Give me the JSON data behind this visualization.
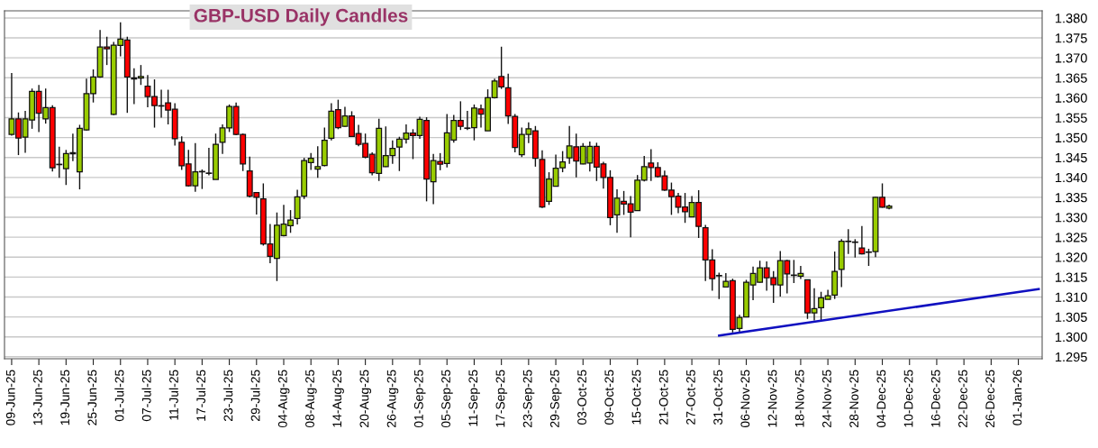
{
  "chart_data": {
    "type": "candlestick",
    "title": "GBP-USD Daily Candles",
    "categories": [
      "09-Jun-25",
      null,
      null,
      null,
      "13-Jun-25",
      null,
      null,
      null,
      "19-Jun-25",
      null,
      null,
      null,
      "25-Jun-25",
      null,
      null,
      null,
      "01-Jul-25",
      null,
      null,
      null,
      "07-Jul-25",
      null,
      null,
      null,
      "11-Jul-25",
      null,
      null,
      null,
      "17-Jul-25",
      null,
      null,
      null,
      "23-Jul-25",
      null,
      null,
      null,
      "29-Jul-25",
      null,
      null,
      null,
      "04-Aug-25",
      null,
      null,
      null,
      "08-Aug-25",
      null,
      null,
      null,
      "14-Aug-25",
      null,
      null,
      null,
      "20-Aug-25",
      null,
      null,
      null,
      "26-Aug-25",
      null,
      null,
      null,
      "01-Sep-25",
      null,
      null,
      null,
      "05-Sep-25",
      null,
      null,
      null,
      "11-Sep-25",
      null,
      null,
      null,
      "17-Sep-25",
      null,
      null,
      null,
      "23-Sep-25",
      null,
      null,
      null,
      "29-Sep-25",
      null,
      null,
      null,
      "03-Oct-25",
      null,
      null,
      null,
      "09-Oct-25",
      null,
      null,
      null,
      "15-Oct-25",
      null,
      null,
      null,
      "21-Oct-25",
      null,
      null,
      null,
      "27-Oct-25",
      null,
      null,
      null,
      "31-Oct-25",
      null,
      null,
      null,
      "06-Nov-25",
      null,
      null,
      null,
      "12-Nov-25",
      null,
      null,
      null,
      "18-Nov-25",
      null,
      null,
      null,
      "24-Nov-25",
      null,
      null,
      null,
      "28-Nov-25",
      null,
      null,
      null,
      "04-Dec-25",
      null,
      null,
      null,
      "10-Dec-25",
      null,
      null,
      null,
      "16-Dec-25",
      null,
      null,
      null,
      "22-Dec-25",
      null,
      null,
      null,
      "26-Dec-25",
      null,
      null,
      null,
      "01-Jan-26",
      null,
      null,
      null
    ],
    "ohlc": [
      [
        1.3508,
        1.3662,
        1.3505,
        1.3547
      ],
      [
        1.3547,
        1.3563,
        1.3456,
        1.3499
      ],
      [
        1.3501,
        1.3567,
        1.3462,
        1.3547
      ],
      [
        1.3544,
        1.3623,
        1.3522,
        1.3616
      ],
      [
        1.3616,
        1.3632,
        1.3514,
        1.3561
      ],
      [
        1.3547,
        1.3623,
        1.3535,
        1.3575
      ],
      [
        1.3575,
        1.3581,
        1.3415,
        1.3424
      ],
      [
        1.3433,
        1.3477,
        1.3399,
        1.3432
      ],
      [
        1.3422,
        1.3469,
        1.3381,
        1.346
      ],
      [
        1.3462,
        1.351,
        1.3441,
        1.3459
      ],
      [
        1.3414,
        1.3532,
        1.337,
        1.3523
      ],
      [
        1.3519,
        1.3648,
        1.3517,
        1.361
      ],
      [
        1.361,
        1.3671,
        1.3588,
        1.3652
      ],
      [
        1.3652,
        1.377,
        1.365,
        1.3727
      ],
      [
        1.3727,
        1.3753,
        1.3682,
        1.3723
      ],
      [
        1.3558,
        1.374,
        1.3556,
        1.3732
      ],
      [
        1.3731,
        1.3789,
        1.3704,
        1.3747
      ],
      [
        1.3745,
        1.3753,
        1.3562,
        1.3652
      ],
      [
        1.365,
        1.3674,
        1.3584,
        1.3647
      ],
      [
        1.3649,
        1.3682,
        1.3632,
        1.3653
      ],
      [
        1.3629,
        1.3657,
        1.3576,
        1.3603
      ],
      [
        1.3603,
        1.3646,
        1.3525,
        1.358
      ],
      [
        1.358,
        1.362,
        1.355,
        1.3579
      ],
      [
        1.3587,
        1.362,
        1.3533,
        1.3569
      ],
      [
        1.3571,
        1.3586,
        1.348,
        1.3497
      ],
      [
        1.3488,
        1.3503,
        1.3419,
        1.3429
      ],
      [
        1.3434,
        1.3469,
        1.3377,
        1.3379
      ],
      [
        1.3379,
        1.3486,
        1.3364,
        1.3414
      ],
      [
        1.3415,
        1.342,
        1.3371,
        1.3414
      ],
      [
        1.3411,
        1.3474,
        1.3405,
        1.341
      ],
      [
        1.3395,
        1.351,
        1.3395,
        1.3483
      ],
      [
        1.3488,
        1.3533,
        1.3459,
        1.3524
      ],
      [
        1.3524,
        1.3583,
        1.3514,
        1.3578
      ],
      [
        1.3578,
        1.3588,
        1.3506,
        1.3508
      ],
      [
        1.3508,
        1.351,
        1.3416,
        1.3434
      ],
      [
        1.3416,
        1.3452,
        1.335,
        1.3353
      ],
      [
        1.3362,
        1.3363,
        1.3307,
        1.335
      ],
      [
        1.3346,
        1.3385,
        1.3229,
        1.3233
      ],
      [
        1.3233,
        1.3283,
        1.3185,
        1.3202
      ],
      [
        1.3197,
        1.3312,
        1.314,
        1.328
      ],
      [
        1.3254,
        1.3331,
        1.3252,
        1.3283
      ],
      [
        1.3279,
        1.3318,
        1.3261,
        1.3293
      ],
      [
        1.3297,
        1.3369,
        1.3282,
        1.3351
      ],
      [
        1.3353,
        1.3449,
        1.3346,
        1.3442
      ],
      [
        1.3437,
        1.3461,
        1.3419,
        1.3448
      ],
      [
        1.3421,
        1.3478,
        1.3399,
        1.3427
      ],
      [
        1.343,
        1.3525,
        1.3428,
        1.3493
      ],
      [
        1.3498,
        1.3586,
        1.3493,
        1.3566
      ],
      [
        1.357,
        1.3595,
        1.3521,
        1.3525
      ],
      [
        1.3528,
        1.3577,
        1.3527,
        1.3554
      ],
      [
        1.3554,
        1.3566,
        1.3502,
        1.3503
      ],
      [
        1.351,
        1.3532,
        1.3478,
        1.3483
      ],
      [
        1.3485,
        1.351,
        1.3448,
        1.3451
      ],
      [
        1.3458,
        1.3463,
        1.3405,
        1.3412
      ],
      [
        1.341,
        1.3547,
        1.3391,
        1.3523
      ],
      [
        1.3427,
        1.3528,
        1.3426,
        1.3455
      ],
      [
        1.3455,
        1.3493,
        1.3434,
        1.3473
      ],
      [
        1.3476,
        1.3502,
        1.3416,
        1.3496
      ],
      [
        1.3496,
        1.3533,
        1.3485,
        1.3511
      ],
      [
        1.3511,
        1.3521,
        1.3446,
        1.3505
      ],
      [
        1.3505,
        1.3552,
        1.3497,
        1.3546
      ],
      [
        1.3543,
        1.3551,
        1.334,
        1.3396
      ],
      [
        1.3389,
        1.3459,
        1.3333,
        1.3442
      ],
      [
        1.344,
        1.3461,
        1.3418,
        1.3433
      ],
      [
        1.3435,
        1.3559,
        1.3425,
        1.3512
      ],
      [
        1.3494,
        1.3557,
        1.3487,
        1.3543
      ],
      [
        1.3543,
        1.3591,
        1.3519,
        1.3528
      ],
      [
        1.3524,
        1.3567,
        1.3519,
        1.3523
      ],
      [
        1.3525,
        1.3583,
        1.3493,
        1.3574
      ],
      [
        1.3572,
        1.3583,
        1.3525,
        1.3559
      ],
      [
        1.3517,
        1.3621,
        1.3517,
        1.36
      ],
      [
        1.36,
        1.3648,
        1.3598,
        1.3642
      ],
      [
        1.3653,
        1.3728,
        1.3622,
        1.3627
      ],
      [
        1.3625,
        1.366,
        1.3534,
        1.3554
      ],
      [
        1.3553,
        1.3559,
        1.3463,
        1.3475
      ],
      [
        1.3457,
        1.3525,
        1.3451,
        1.3508
      ],
      [
        1.3508,
        1.3538,
        1.3486,
        1.3522
      ],
      [
        1.3517,
        1.3529,
        1.3427,
        1.3448
      ],
      [
        1.3445,
        1.3468,
        1.3323,
        1.3326
      ],
      [
        1.334,
        1.3413,
        1.3331,
        1.3396
      ],
      [
        1.3378,
        1.3457,
        1.3377,
        1.3423
      ],
      [
        1.3424,
        1.3466,
        1.3413,
        1.3439
      ],
      [
        1.3449,
        1.3529,
        1.3434,
        1.3479
      ],
      [
        1.3477,
        1.351,
        1.34,
        1.3441
      ],
      [
        1.3434,
        1.3486,
        1.3433,
        1.3478
      ],
      [
        1.3436,
        1.349,
        1.3415,
        1.3478
      ],
      [
        1.3478,
        1.3487,
        1.3391,
        1.3426
      ],
      [
        1.3434,
        1.3439,
        1.3372,
        1.34
      ],
      [
        1.34,
        1.3418,
        1.328,
        1.3299
      ],
      [
        1.3306,
        1.337,
        1.3261,
        1.3348
      ],
      [
        1.334,
        1.3366,
        1.3306,
        1.3333
      ],
      [
        1.3334,
        1.3353,
        1.325,
        1.3313
      ],
      [
        1.3317,
        1.3406,
        1.3316,
        1.3393
      ],
      [
        1.3393,
        1.3454,
        1.339,
        1.3427
      ],
      [
        1.3436,
        1.3471,
        1.3391,
        1.3425
      ],
      [
        1.3425,
        1.3438,
        1.34,
        1.3402
      ],
      [
        1.3404,
        1.3417,
        1.3366,
        1.3368
      ],
      [
        1.3368,
        1.3387,
        1.3306,
        1.3352
      ],
      [
        1.3353,
        1.3361,
        1.331,
        1.3325
      ],
      [
        1.3326,
        1.3361,
        1.3286,
        1.3314
      ],
      [
        1.3301,
        1.3353,
        1.33,
        1.3337
      ],
      [
        1.3337,
        1.3368,
        1.3248,
        1.3277
      ],
      [
        1.3274,
        1.3281,
        1.314,
        1.3193
      ],
      [
        1.3193,
        1.322,
        1.3116,
        1.3146
      ],
      [
        1.3154,
        1.3161,
        1.3095,
        1.3153
      ],
      [
        1.3125,
        1.316,
        1.3124,
        1.3139
      ],
      [
        1.3141,
        1.3146,
        1.3011,
        1.3019
      ],
      [
        1.3021,
        1.3055,
        1.3011,
        1.3049
      ],
      [
        1.305,
        1.3143,
        1.3049,
        1.3137
      ],
      [
        1.313,
        1.3176,
        1.3092,
        1.3159
      ],
      [
        1.3137,
        1.3191,
        1.3136,
        1.3173
      ],
      [
        1.3173,
        1.3189,
        1.3116,
        1.3148
      ],
      [
        1.3148,
        1.3165,
        1.3085,
        1.3131
      ],
      [
        1.313,
        1.3215,
        1.3101,
        1.3191
      ],
      [
        1.3191,
        1.3193,
        1.3109,
        1.3158
      ],
      [
        1.3155,
        1.3193,
        1.3135,
        1.3154
      ],
      [
        1.3152,
        1.3178,
        1.3145,
        1.3159
      ],
      [
        1.3143,
        1.3143,
        1.3045,
        1.306
      ],
      [
        1.306,
        1.3122,
        1.3041,
        1.3071
      ],
      [
        1.3073,
        1.3113,
        1.3041,
        1.3098
      ],
      [
        1.3094,
        1.3118,
        1.3094,
        1.3103
      ],
      [
        1.3105,
        1.3214,
        1.3095,
        1.3164
      ],
      [
        1.3169,
        1.3245,
        1.3125,
        1.324
      ],
      [
        1.324,
        1.327,
        1.3208,
        1.3239
      ],
      [
        1.3238,
        1.3245,
        1.3199,
        1.3237
      ],
      [
        1.3223,
        1.3278,
        1.3207,
        1.3208
      ],
      [
        1.3213,
        1.3221,
        1.3178,
        1.3212
      ],
      [
        1.3214,
        1.3351,
        1.32,
        1.335
      ],
      [
        1.335,
        1.3385,
        1.3324,
        1.3325
      ],
      [
        1.3323,
        1.3332,
        1.332,
        1.3328
      ],
      null,
      null,
      null,
      null,
      null,
      null,
      null,
      null,
      null,
      null,
      null,
      null,
      null,
      null,
      null,
      null,
      null,
      null,
      null,
      null,
      null,
      null
    ],
    "colors": [
      "#99cc00",
      "#ff0000",
      "#99cc00",
      "#99cc00",
      "#ff0000",
      "#99cc00",
      "#ff0000",
      "#ff0000",
      "#99cc00",
      "#ff0000",
      "#99cc00",
      "#99cc00",
      "#99cc00",
      "#99cc00",
      "#ff0000",
      "#99cc00",
      "#99cc00",
      "#ff0000",
      "#ff0000",
      "#99cc00",
      "#ff0000",
      "#ff0000",
      "#ff0000",
      "#ff0000",
      "#ff0000",
      "#ff0000",
      "#ff0000",
      "#99cc00",
      "#ff0000",
      "#ff0000",
      "#99cc00",
      "#99cc00",
      "#99cc00",
      "#ff0000",
      "#ff0000",
      "#ff0000",
      "#ff0000",
      "#ff0000",
      "#ff0000",
      "#99cc00",
      "#99cc00",
      "#99cc00",
      "#99cc00",
      "#99cc00",
      "#99cc00",
      "#99cc00",
      "#99cc00",
      "#99cc00",
      "#ff0000",
      "#99cc00",
      "#ff0000",
      "#ff0000",
      "#ff0000",
      "#ff0000",
      "#99cc00",
      "#99cc00",
      "#99cc00",
      "#99cc00",
      "#99cc00",
      "#ff0000",
      "#99cc00",
      "#ff0000",
      "#99cc00",
      "#ff0000",
      "#99cc00",
      "#99cc00",
      "#ff0000",
      "#ff0000",
      "#99cc00",
      "#ff0000",
      "#99cc00",
      "#99cc00",
      "#ff0000",
      "#ff0000",
      "#ff0000",
      "#99cc00",
      "#99cc00",
      "#ff0000",
      "#ff0000",
      "#99cc00",
      "#99cc00",
      "#99cc00",
      "#99cc00",
      "#ff0000",
      "#99cc00",
      "#99cc00",
      "#ff0000",
      "#ff0000",
      "#ff0000",
      "#99cc00",
      "#ff0000",
      "#ff0000",
      "#99cc00",
      "#99cc00",
      "#ff0000",
      "#ff0000",
      "#ff0000",
      "#ff0000",
      "#ff0000",
      "#ff0000",
      "#99cc00",
      "#ff0000",
      "#ff0000",
      "#ff0000",
      "#ff0000",
      "#99cc00",
      "#ff0000",
      "#99cc00",
      "#99cc00",
      "#99cc00",
      "#99cc00",
      "#ff0000",
      "#ff0000",
      "#99cc00",
      "#ff0000",
      "#ff0000",
      "#99cc00",
      "#ff0000",
      "#99cc00",
      "#99cc00",
      "#99cc00",
      "#99cc00",
      "#99cc00",
      "#ff0000",
      "#ff0000",
      "#ff0000",
      "#ff0000",
      "#99cc00",
      "#ff0000",
      "#99cc00",
      null,
      null,
      null,
      null,
      null,
      null,
      null,
      null,
      null,
      null,
      null,
      null,
      null,
      null,
      null,
      null,
      null,
      null,
      null,
      null,
      null,
      null
    ],
    "series": [
      {
        "type": "line",
        "color": "#1010c0",
        "values": [
          null,
          null,
          null,
          null,
          null,
          null,
          null,
          null,
          null,
          null,
          null,
          null,
          null,
          null,
          null,
          null,
          null,
          null,
          null,
          null,
          null,
          null,
          null,
          null,
          null,
          null,
          null,
          null,
          null,
          null,
          null,
          null,
          null,
          null,
          null,
          null,
          null,
          null,
          null,
          null,
          null,
          null,
          null,
          null,
          null,
          null,
          null,
          null,
          null,
          null,
          null,
          null,
          null,
          null,
          null,
          null,
          null,
          null,
          null,
          null,
          null,
          null,
          null,
          null,
          null,
          null,
          null,
          null,
          null,
          null,
          null,
          null,
          null,
          null,
          null,
          null,
          null,
          null,
          null,
          null,
          null,
          null,
          null,
          null,
          null,
          null,
          null,
          null,
          null,
          null,
          null,
          null,
          null,
          null,
          null,
          null,
          null,
          null,
          null,
          null,
          null,
          null,
          null,
          null,
          1.3003,
          null,
          null,
          null,
          null,
          null,
          null,
          null,
          null,
          null,
          null,
          null,
          null,
          null,
          null,
          null,
          null,
          null,
          null,
          null,
          null,
          null,
          null,
          null,
          null,
          null,
          null,
          null,
          null,
          null,
          null,
          null,
          null,
          null,
          null,
          null,
          null,
          null,
          null,
          null,
          null,
          null,
          null,
          null,
          null,
          null,
          null,
          1.312
        ]
      }
    ],
    "ylim": [
      1.2945,
      1.3818
    ],
    "yticks": [
      {
        "value": 1.295,
        "label": "1.295"
      },
      {
        "value": 1.3,
        "label": "1.300"
      },
      {
        "value": 1.305,
        "label": "1.305"
      },
      {
        "value": 1.31,
        "label": "1.310"
      },
      {
        "value": 1.315,
        "label": "1.315"
      },
      {
        "value": 1.32,
        "label": "1.320"
      },
      {
        "value": 1.325,
        "label": "1.325"
      },
      {
        "value": 1.33,
        "label": "1.330"
      },
      {
        "value": 1.335,
        "label": "1.335"
      },
      {
        "value": 1.34,
        "label": "1.340"
      },
      {
        "value": 1.345,
        "label": "1.345"
      },
      {
        "value": 1.35,
        "label": "1.350"
      },
      {
        "value": 1.355,
        "label": "1.355"
      },
      {
        "value": 1.36,
        "label": "1.360"
      },
      {
        "value": 1.365,
        "label": "1.365"
      },
      {
        "value": 1.37,
        "label": "1.370"
      },
      {
        "value": 1.375,
        "label": "1.375"
      },
      {
        "value": 1.38,
        "label": "1.380"
      }
    ],
    "grid": "y"
  }
}
